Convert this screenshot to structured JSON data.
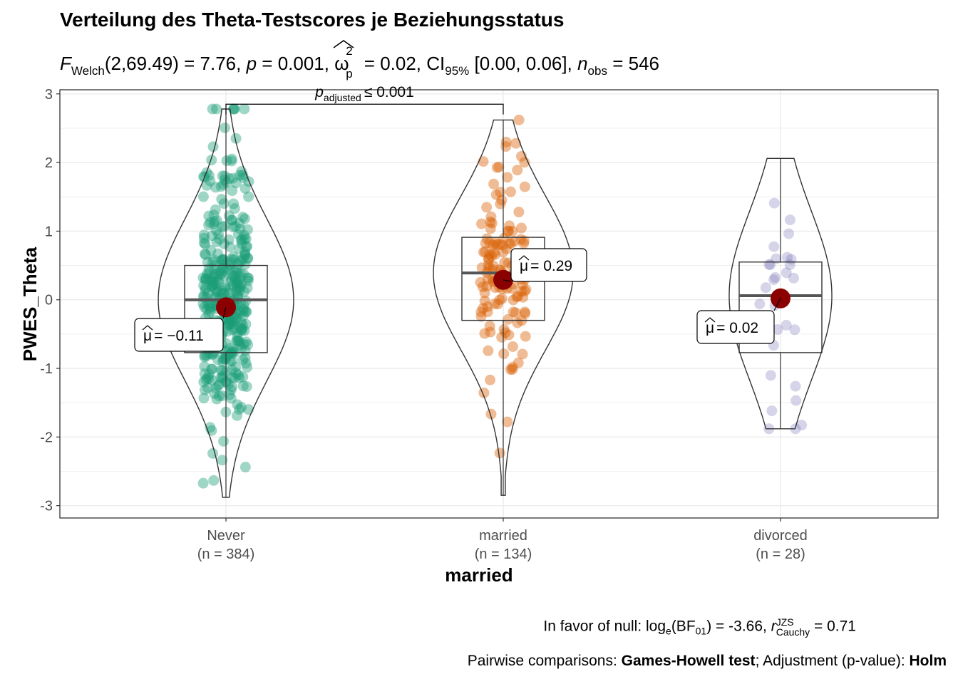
{
  "title": "Verteilung des Theta-Testscores je Beziehungsstatus",
  "subtitle": {
    "F": "F",
    "F_sub": "Welch",
    "stat_text": "(2,69.49) = 7.76,",
    "p_label": "p",
    "p_value": "= 0.001,",
    "omega": "ω",
    "omega_sup": "2",
    "omega_sub": "p",
    "omega_value": "= 0.02, CI",
    "ci_sub": "95%",
    "ci_text": "[0.00, 0.06],",
    "n_label": "n",
    "n_sub": "obs",
    "n_value": "= 546"
  },
  "comparison": {
    "p_label": "p",
    "p_sub": "adjusted",
    "p_text": "≤ 0.001"
  },
  "caption": {
    "line1_prefix": "In favor of null: log",
    "line1_e": "e",
    "line1_bf": "(BF",
    "line1_bf_sub": "01",
    "line1_mid": ") = -3.66,",
    "line1_r": "r",
    "line1_r_sup": "JZS",
    "line1_r_sub": "Cauchy",
    "line1_end": "= 0.71",
    "line2_prefix": "Pairwise comparisons: ",
    "line2_test": "Games-Howell test",
    "line2_mid": "; Adjustment (p-value): ",
    "line2_adj": "Holm"
  },
  "chart_data": {
    "type": "violin-box-scatter",
    "title": "Verteilung des Theta-Testscores je Beziehungsstatus",
    "xlabel": "married",
    "ylabel": "PWES_Theta",
    "ylim": [
      -3.18,
      3.06
    ],
    "yticks": [
      -3,
      -2,
      -1,
      0,
      1,
      2,
      3
    ],
    "grid": true,
    "groups": [
      {
        "name": "Never",
        "n_label": "(n = 384)",
        "n": 384,
        "color": "#1b9e77",
        "mean": -0.11,
        "mean_label": "= −0.11",
        "median": 0.0,
        "q1": -0.77,
        "q3": 0.5,
        "min": -2.88,
        "max": 2.78
      },
      {
        "name": "married",
        "n_label": "(n = 134)",
        "n": 134,
        "color": "#d95f02",
        "mean": 0.29,
        "mean_label": "= 0.29",
        "median": 0.39,
        "q1": -0.3,
        "q3": 0.91,
        "min": -2.85,
        "max": 2.62
      },
      {
        "name": "divorced",
        "n_label": "(n = 28)",
        "n": 28,
        "color": "#7570b3",
        "mean": 0.02,
        "mean_label": "= 0.02",
        "median": 0.06,
        "q1": -0.77,
        "q3": 0.55,
        "min": -1.88,
        "max": 2.06
      }
    ],
    "comparison": {
      "from": "Never",
      "to": "married",
      "label": "p adjusted ≤ 0.001"
    },
    "mean_point_color": "#8b0000"
  }
}
